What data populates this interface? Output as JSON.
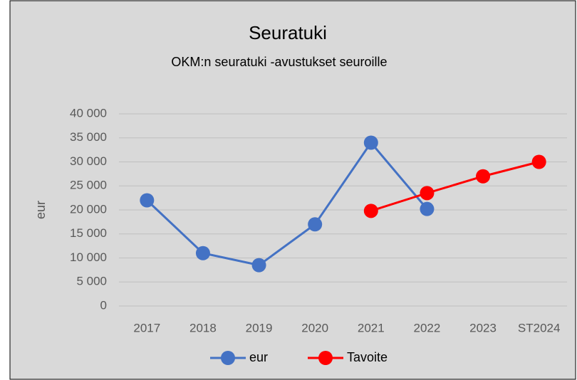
{
  "chart_data": {
    "type": "line",
    "title": "Seuratuki",
    "subtitle": "OKM:n seuratuki -avustukset seuroille",
    "y_label": "eur",
    "categories": [
      "2017",
      "2018",
      "2019",
      "2020",
      "2021",
      "2022",
      "2023",
      "ST2024"
    ],
    "series": [
      {
        "name": "eur",
        "color": "#4472c4",
        "values": [
          22000,
          11000,
          8500,
          17000,
          34000,
          20200,
          null,
          null
        ]
      },
      {
        "name": "Tavoite",
        "color": "#ff0000",
        "values": [
          null,
          null,
          null,
          null,
          19800,
          23500,
          27000,
          30000
        ]
      }
    ],
    "ylim": [
      0,
      40000
    ],
    "yticks": [
      0,
      {
        "value": 5000,
        "label": "5 000"
      },
      {
        "value": 10000,
        "label": "10 000"
      },
      {
        "value": 15000,
        "label": "15 000"
      },
      {
        "value": 20000,
        "label": "20 000"
      },
      {
        "value": 25000,
        "label": "25 000"
      },
      {
        "value": 30000,
        "label": "30 000"
      },
      {
        "value": 35000,
        "label": "35 000"
      },
      {
        "value": 40000,
        "label": "40 000"
      }
    ],
    "grid": true,
    "legend": "bottom"
  }
}
